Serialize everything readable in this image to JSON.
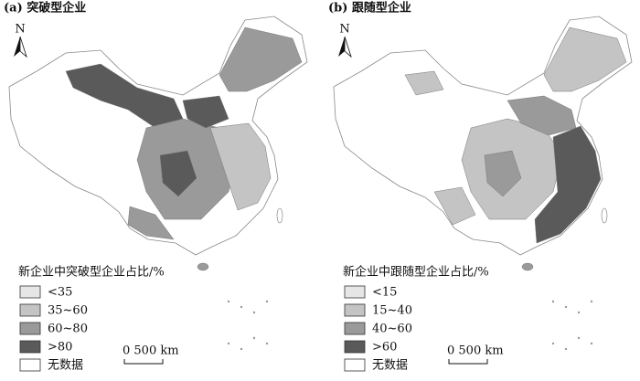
{
  "panels": [
    {
      "title": "(a) 突破型企业",
      "north": "N",
      "legend": {
        "title": "新企业中突破型企业占比/%",
        "items": [
          {
            "label": "<35",
            "color": "#e6e6e6"
          },
          {
            "label": "35~60",
            "color": "#c4c4c4"
          },
          {
            "label": "60~80",
            "color": "#9a9a9a"
          },
          {
            "label": ">80",
            "color": "#5a5a5a"
          },
          {
            "label": "无数据",
            "color": "#ffffff"
          }
        ]
      },
      "scale": "0  500 km"
    },
    {
      "title": "(b) 跟随型企业",
      "north": "N",
      "legend": {
        "title": "新企业中跟随型企业占比/%",
        "items": [
          {
            "label": "<15",
            "color": "#e6e6e6"
          },
          {
            "label": "15~40",
            "color": "#c4c4c4"
          },
          {
            "label": "40~60",
            "color": "#9a9a9a"
          },
          {
            "label": ">60",
            "color": "#5a5a5a"
          },
          {
            "label": "无数据",
            "color": "#ffffff"
          }
        ]
      },
      "scale": "0  500 km"
    }
  ]
}
